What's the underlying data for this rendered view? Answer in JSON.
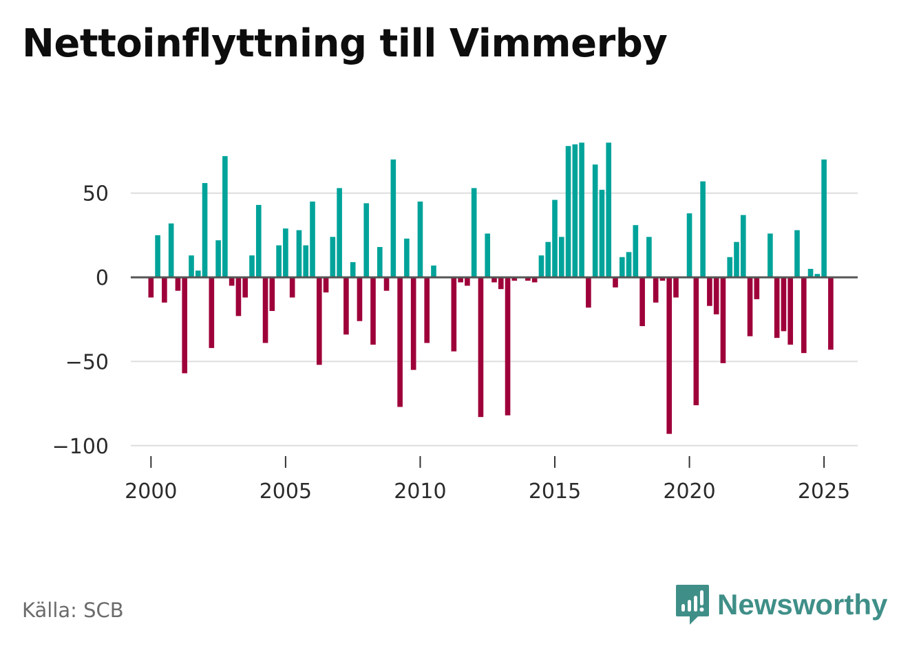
{
  "title": "Nettoinflyttning till Vimmerby",
  "source": "Källa: SCB",
  "brand": {
    "name": "Newsworthy",
    "icon": "newsworthy-logo-icon",
    "color": "#3f8f88"
  },
  "colors": {
    "positive": "#00a39a",
    "negative": "#9e0039",
    "grid": "#dddddd",
    "zero_line": "#555555"
  },
  "chart_data": {
    "type": "bar",
    "title": "Nettoinflyttning till Vimmerby",
    "xlabel": "",
    "ylabel": "",
    "ylim": [
      -105,
      83
    ],
    "xlim": [
      1999.25,
      2026.25
    ],
    "grid": true,
    "y_ticks": [
      50,
      0,
      -50,
      -100
    ],
    "y_tick_labels": [
      "50",
      "0",
      "−50",
      "−100"
    ],
    "x_ticks": [
      2000,
      2005,
      2010,
      2015,
      2020,
      2025
    ],
    "x_tick_labels": [
      "2000",
      "2005",
      "2010",
      "2015",
      "2020",
      "2025"
    ],
    "start_year": 2000,
    "period": "quarter",
    "values": [
      -12,
      25,
      -15,
      32,
      -8,
      -57,
      13,
      4,
      56,
      -42,
      22,
      72,
      -5,
      -23,
      -12,
      13,
      43,
      -39,
      -20,
      19,
      29,
      -12,
      28,
      19,
      45,
      -52,
      -9,
      24,
      53,
      -34,
      9,
      -26,
      44,
      -40,
      18,
      -8,
      70,
      -77,
      23,
      -55,
      45,
      -39,
      7,
      0,
      0,
      -44,
      -3,
      -5,
      53,
      -83,
      26,
      -3,
      -7,
      -82,
      -2,
      0,
      -2,
      -3,
      13,
      21,
      46,
      24,
      78,
      79,
      80,
      -18,
      67,
      52,
      80,
      -6,
      12,
      15,
      31,
      -29,
      24,
      -15,
      -2,
      -93,
      -12,
      0,
      38,
      -76,
      57,
      -17,
      -22,
      -51,
      12,
      21,
      37,
      -35,
      -13,
      0,
      26,
      -36,
      -32,
      -40,
      28,
      -45,
      5,
      2,
      70,
      -43
    ]
  }
}
